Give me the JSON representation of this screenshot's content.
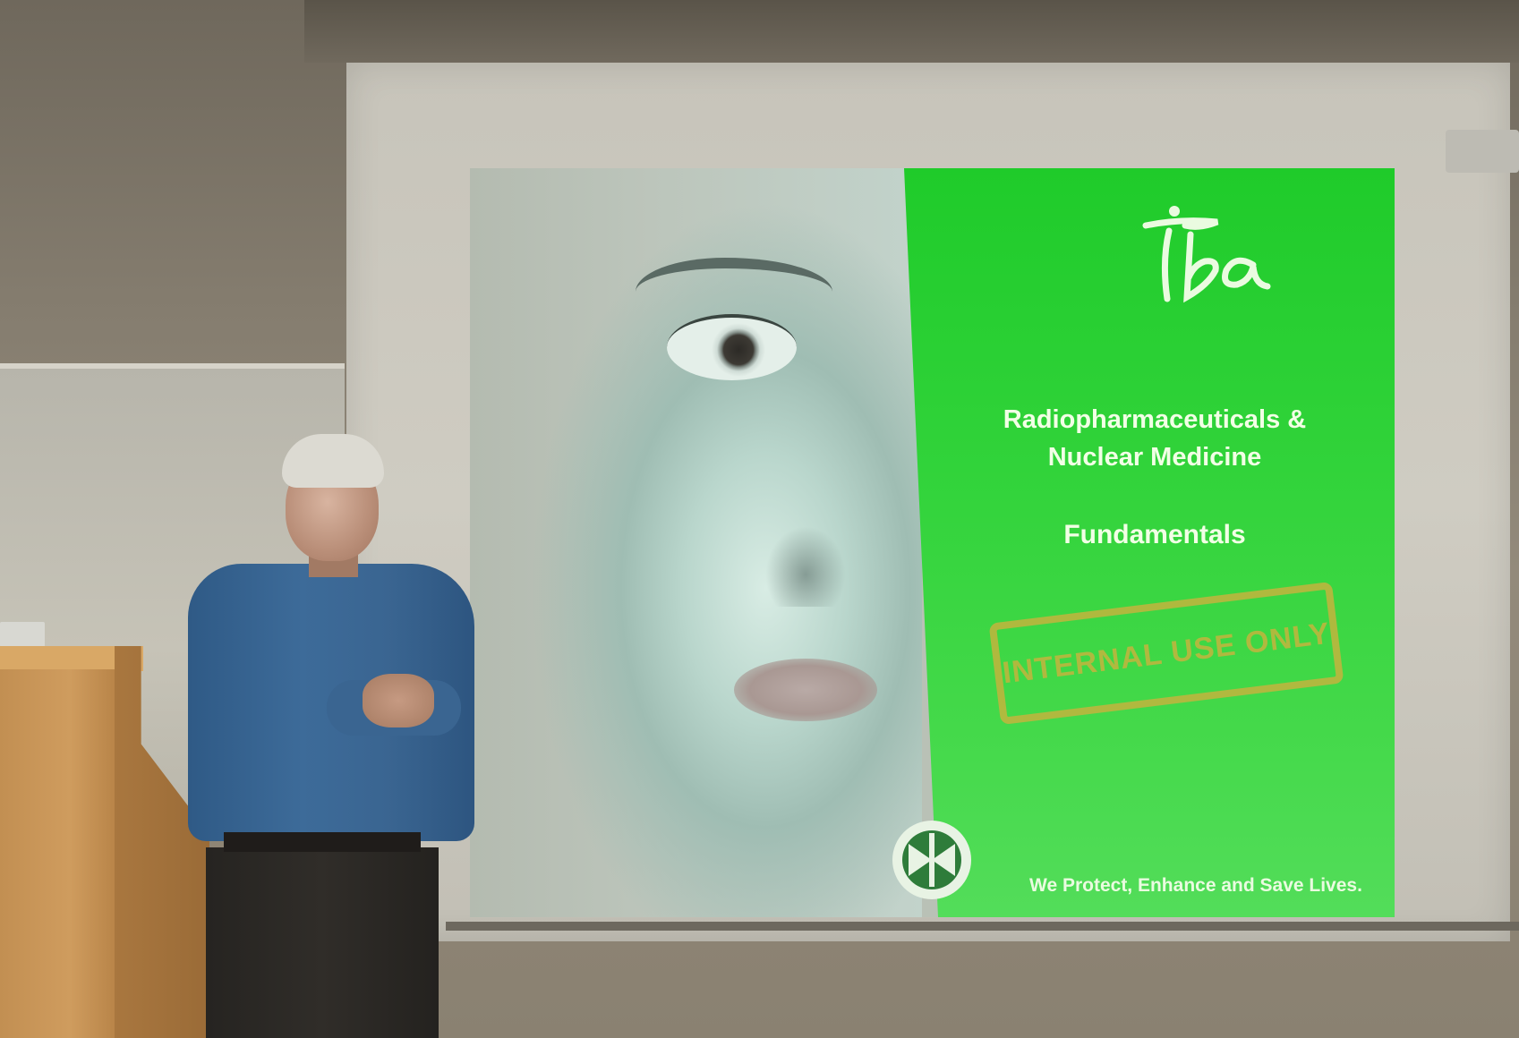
{
  "slide": {
    "logo_text": "iba",
    "title_line1": "Radiopharmaceuticals &",
    "title_line2": "Nuclear Medicine",
    "subtitle": "Fundamentals",
    "stamp": "INTERNAL USE ONLY",
    "tagline": "We Protect, Enhance and Save Lives.",
    "colors": {
      "panel_green": "#31d33a",
      "text": "#f2ffe6",
      "stamp": "#c4b43e"
    }
  },
  "scene": {
    "presenter_shirt_color": "#3d6b99",
    "podium_color": "#cf9c5e",
    "screen_color": "#cfccc2"
  }
}
